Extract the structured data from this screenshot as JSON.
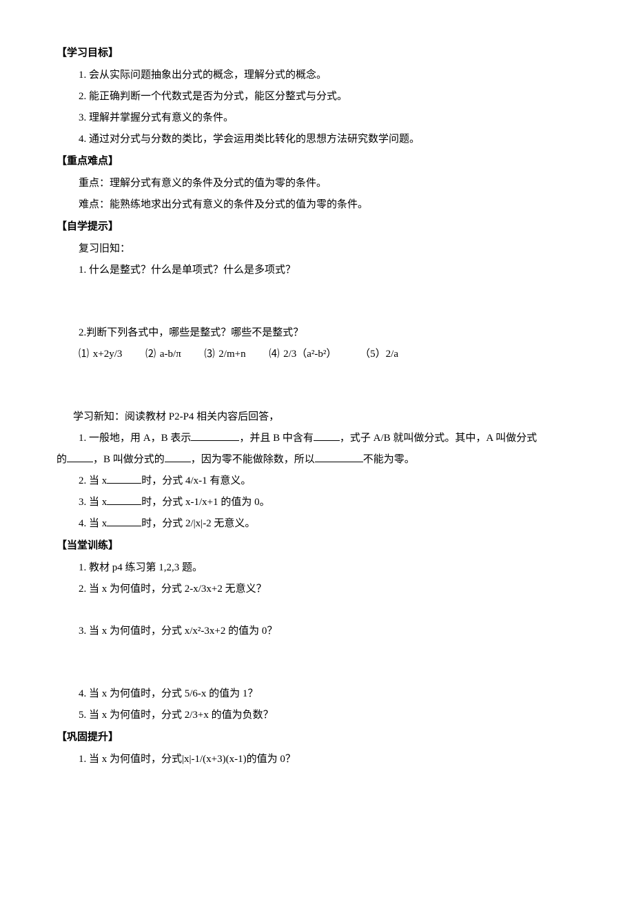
{
  "headings": {
    "objectives": "【学习目标】",
    "keypoints": "【重点难点】",
    "selfstudy": "【自学提示】",
    "practice": "【当堂训练】",
    "consolidate": "【巩固提升】"
  },
  "objectives": {
    "items": [
      "1.  会从实际问题抽象出分式的概念，理解分式的概念。",
      "2.  能正确判断一个代数式是否为分式，能区分整式与分式。",
      "3.  理解并掌握分式有意义的条件。",
      "4.  通过对分式与分数的类比，学会运用类比转化的思想方法研究数学问题。"
    ]
  },
  "keypoints": {
    "focus": "重点：理解分式有意义的条件及分式的值为零的条件。",
    "difficult": "难点：能熟练地求出分式有意义的条件及分式的值为零的条件。"
  },
  "selfstudy": {
    "review_label": "复习旧知：",
    "q1": "1.  什么是整式？什么是单项式？什么是多项式？",
    "q2": "2.判断下列各式中，哪些是整式？哪些不是整式？",
    "exprs": [
      "⑴ x+2y/3",
      "⑵ a-b/π",
      "⑶  2/m+n",
      "⑷ 2/3（a²-b²）",
      "（5）2/a"
    ],
    "new_label": "学习新知：阅读教材 P2-P4 相关内容后回答，",
    "nk1_a": "1. 一般地，用 A，B 表示",
    "nk1_b": "，并且 B 中含有",
    "nk1_c": "，式子 A/B 就叫做分式。其中，A 叫做分式",
    "nk1_d": "的",
    "nk1_e": "，B 叫做分式的",
    "nk1_f": "，因为零不能做除数，所以",
    "nk1_g": "不能为零。",
    "nk2_a": "2. 当 x",
    "nk2_b": "时，分式 4/x-1 有意义。",
    "nk3_a": "3.  当 x",
    "nk3_b": "时，分式 x-1/x+1 的值为 0。",
    "nk4_a": "4.  当 x",
    "nk4_b": "时，分式 2/|x|-2 无意义。"
  },
  "practice": {
    "items": [
      "1.  教材 p4 练习第 1,2,3 题。",
      "2.  当 x 为何值时，分式 2-x/3x+2 无意义？",
      "3.  当 x 为何值时，分式 x/x²-3x+2 的值为 0？",
      "4.  当 x 为何值时，分式 5/6-x 的值为 1？",
      "5.  当 x 为何值时，分式 2/3+x 的值为负数？"
    ]
  },
  "consolidate": {
    "items": [
      "1.  当 x 为何值时，分式|x|-1/(x+3)(x-1)的值为 0？"
    ]
  }
}
